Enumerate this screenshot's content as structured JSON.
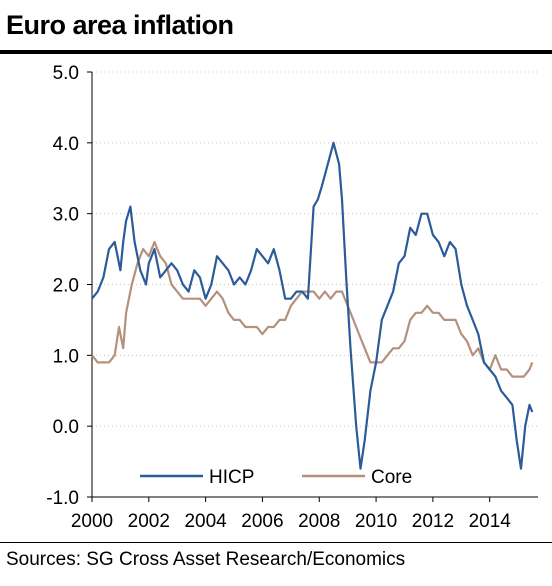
{
  "header": {
    "title": "Euro area inflation"
  },
  "footer": {
    "source": "Sources: SG Cross Asset Research/Economics"
  },
  "colors": {
    "hicp": "#2b5b99",
    "core": "#b5907d",
    "grid": "#c8c8c8",
    "axis": "#000000"
  },
  "chart_data": {
    "type": "line",
    "title": "Euro area inflation",
    "xlabel": "",
    "ylabel": "",
    "xlim": [
      2000,
      2015.7
    ],
    "ylim": [
      -1.0,
      5.0
    ],
    "x_ticks": [
      2000,
      2002,
      2004,
      2006,
      2008,
      2010,
      2012,
      2014
    ],
    "x_tick_labels": [
      "2000",
      "2002",
      "2004",
      "2006",
      "2008",
      "2010",
      "2012",
      "2014"
    ],
    "y_ticks": [
      -1.0,
      0.0,
      1.0,
      2.0,
      3.0,
      4.0,
      5.0
    ],
    "y_tick_labels": [
      "-1.0",
      "0.0",
      "1.0",
      "2.0",
      "3.0",
      "4.0",
      "5.0"
    ],
    "grid": "horizontal",
    "legend": "bottom-center",
    "series": [
      {
        "name": "HICP",
        "x": [
          2000.0,
          2000.2,
          2000.4,
          2000.6,
          2000.8,
          2001.0,
          2001.1,
          2001.2,
          2001.35,
          2001.5,
          2001.7,
          2001.9,
          2002.0,
          2002.2,
          2002.4,
          2002.6,
          2002.8,
          2003.0,
          2003.2,
          2003.4,
          2003.6,
          2003.8,
          2004.0,
          2004.2,
          2004.4,
          2004.6,
          2004.8,
          2005.0,
          2005.2,
          2005.4,
          2005.6,
          2005.8,
          2006.0,
          2006.2,
          2006.4,
          2006.6,
          2006.8,
          2007.0,
          2007.2,
          2007.4,
          2007.6,
          2007.8,
          2007.95,
          2008.1,
          2008.3,
          2008.5,
          2008.7,
          2008.8,
          2008.95,
          2009.1,
          2009.3,
          2009.45,
          2009.6,
          2009.8,
          2010.0,
          2010.2,
          2010.4,
          2010.6,
          2010.8,
          2011.0,
          2011.2,
          2011.4,
          2011.6,
          2011.8,
          2012.0,
          2012.2,
          2012.4,
          2012.6,
          2012.8,
          2013.0,
          2013.2,
          2013.4,
          2013.6,
          2013.8,
          2014.0,
          2014.2,
          2014.4,
          2014.6,
          2014.8,
          2014.95,
          2015.1,
          2015.25,
          2015.4,
          2015.5
        ],
        "values": [
          1.8,
          1.9,
          2.1,
          2.5,
          2.6,
          2.2,
          2.6,
          2.9,
          3.1,
          2.6,
          2.2,
          2.0,
          2.3,
          2.5,
          2.1,
          2.2,
          2.3,
          2.2,
          2.0,
          1.9,
          2.2,
          2.1,
          1.8,
          2.0,
          2.4,
          2.3,
          2.2,
          2.0,
          2.1,
          2.0,
          2.2,
          2.5,
          2.4,
          2.3,
          2.5,
          2.2,
          1.8,
          1.8,
          1.9,
          1.9,
          1.8,
          3.1,
          3.2,
          3.4,
          3.7,
          4.0,
          3.7,
          3.2,
          2.1,
          1.1,
          0.0,
          -0.6,
          -0.2,
          0.5,
          0.9,
          1.5,
          1.7,
          1.9,
          2.3,
          2.4,
          2.8,
          2.7,
          3.0,
          3.0,
          2.7,
          2.6,
          2.4,
          2.6,
          2.5,
          2.0,
          1.7,
          1.5,
          1.3,
          0.9,
          0.8,
          0.7,
          0.5,
          0.4,
          0.3,
          -0.2,
          -0.6,
          0.0,
          0.3,
          0.2
        ]
      },
      {
        "name": "Core",
        "x": [
          2000.0,
          2000.2,
          2000.4,
          2000.6,
          2000.8,
          2000.95,
          2001.1,
          2001.2,
          2001.4,
          2001.6,
          2001.8,
          2002.0,
          2002.2,
          2002.4,
          2002.6,
          2002.8,
          2003.0,
          2003.2,
          2003.4,
          2003.6,
          2003.8,
          2004.0,
          2004.2,
          2004.4,
          2004.6,
          2004.8,
          2005.0,
          2005.2,
          2005.4,
          2005.6,
          2005.8,
          2006.0,
          2006.2,
          2006.4,
          2006.6,
          2006.8,
          2007.0,
          2007.2,
          2007.4,
          2007.6,
          2007.8,
          2008.0,
          2008.2,
          2008.4,
          2008.6,
          2008.8,
          2009.0,
          2009.2,
          2009.4,
          2009.6,
          2009.8,
          2010.0,
          2010.2,
          2010.4,
          2010.6,
          2010.8,
          2011.0,
          2011.2,
          2011.4,
          2011.6,
          2011.8,
          2012.0,
          2012.2,
          2012.4,
          2012.6,
          2012.8,
          2013.0,
          2013.2,
          2013.4,
          2013.6,
          2013.8,
          2014.0,
          2014.2,
          2014.4,
          2014.6,
          2014.8,
          2015.0,
          2015.2,
          2015.4,
          2015.5
        ],
        "values": [
          1.0,
          0.9,
          0.9,
          0.9,
          1.0,
          1.4,
          1.1,
          1.6,
          2.0,
          2.3,
          2.5,
          2.4,
          2.6,
          2.4,
          2.3,
          2.0,
          1.9,
          1.8,
          1.8,
          1.8,
          1.8,
          1.7,
          1.8,
          1.9,
          1.8,
          1.6,
          1.5,
          1.5,
          1.4,
          1.4,
          1.4,
          1.3,
          1.4,
          1.4,
          1.5,
          1.5,
          1.7,
          1.8,
          1.9,
          1.9,
          1.9,
          1.8,
          1.9,
          1.8,
          1.9,
          1.9,
          1.7,
          1.5,
          1.3,
          1.1,
          0.9,
          0.9,
          0.9,
          1.0,
          1.1,
          1.1,
          1.2,
          1.5,
          1.6,
          1.6,
          1.7,
          1.6,
          1.6,
          1.5,
          1.5,
          1.5,
          1.3,
          1.2,
          1.0,
          1.1,
          0.9,
          0.8,
          1.0,
          0.8,
          0.8,
          0.7,
          0.7,
          0.7,
          0.8,
          0.9
        ]
      }
    ]
  }
}
